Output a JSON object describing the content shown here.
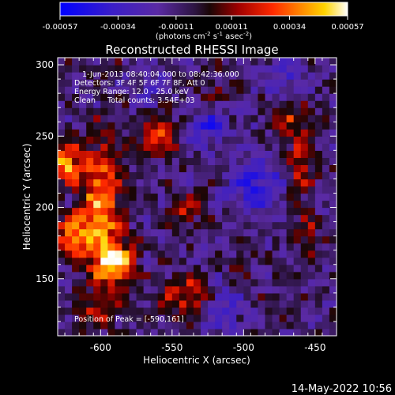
{
  "colorbar": {
    "ticks": [
      "-0.00057",
      "-0.00034",
      "-0.00011",
      "0.00011",
      "0.00034",
      "0.00057"
    ],
    "tick_values": [
      -0.00057,
      -0.00034,
      -0.00011,
      0.00011,
      0.00034,
      0.00057
    ],
    "unit_main": "(photons cm",
    "unit_sup1": "-2",
    "unit_mid1": " s",
    "unit_sup2": "-1",
    "unit_mid2": " asec",
    "unit_sup3": "-2",
    "unit_end": ")",
    "stops": [
      {
        "at": 0.0,
        "color": "#0000ff"
      },
      {
        "at": 0.18,
        "color": "#3a1ec8"
      },
      {
        "at": 0.34,
        "color": "#5a2aa4"
      },
      {
        "at": 0.47,
        "color": "#2c1440"
      },
      {
        "at": 0.52,
        "color": "#1a0606"
      },
      {
        "at": 0.62,
        "color": "#a00000"
      },
      {
        "at": 0.74,
        "color": "#ff2a00"
      },
      {
        "at": 0.84,
        "color": "#ff8a00"
      },
      {
        "at": 0.92,
        "color": "#ffd400"
      },
      {
        "at": 1.0,
        "color": "#ffffff"
      }
    ]
  },
  "plot": {
    "annotations": [
      "1-Jun-2013 08:40:04.000 to 08:42:36.000",
      "Detectors: 3F 4F 5F 6F 7F 8F, Att 0",
      "Energy Range: 12.0 - 25.0 keV",
      "Clean     Total counts: 3.54E+03"
    ],
    "peak_label": "Position of Peak = [-590,161]"
  },
  "footer": {
    "timestamp": "14-May-2022 10:56"
  },
  "chart_data": {
    "type": "heatmap",
    "title": "Reconstructed RHESSI Image",
    "xlabel": "Heliocentric X (arcsec)",
    "ylabel": "Heliocentric Y (arcsec)",
    "xlim": [
      -630,
      -435
    ],
    "ylim": [
      110,
      305
    ],
    "xticks": [
      -600,
      -550,
      -500,
      -450
    ],
    "yticks": [
      150,
      200,
      250,
      300
    ],
    "xtick_labels": [
      "-600",
      "-550",
      "-500",
      "-450"
    ],
    "ytick_labels": [
      "150",
      "200",
      "250",
      "300"
    ],
    "zrange": [
      -0.00057,
      0.00057
    ],
    "peak": [
      -590,
      161
    ],
    "blobs": [
      {
        "x": -600,
        "y": 200,
        "sx": 10,
        "sy": 32,
        "amp": 0.9
      },
      {
        "x": -590,
        "y": 162,
        "sx": 9,
        "sy": 9,
        "amp": 1.0
      },
      {
        "x": -624,
        "y": 232,
        "sx": 6,
        "sy": 10,
        "amp": 0.95
      },
      {
        "x": -620,
        "y": 180,
        "sx": 8,
        "sy": 10,
        "amp": 0.7
      },
      {
        "x": -560,
        "y": 250,
        "sx": 10,
        "sy": 10,
        "amp": 0.6
      },
      {
        "x": -540,
        "y": 200,
        "sx": 9,
        "sy": 8,
        "amp": 0.45
      },
      {
        "x": -540,
        "y": 138,
        "sx": 12,
        "sy": 10,
        "amp": 0.55
      },
      {
        "x": -460,
        "y": 230,
        "sx": 7,
        "sy": 18,
        "amp": 0.55
      },
      {
        "x": -470,
        "y": 265,
        "sx": 8,
        "sy": 8,
        "amp": 0.45
      },
      {
        "x": -455,
        "y": 178,
        "sx": 6,
        "sy": 10,
        "amp": 0.4
      },
      {
        "x": -600,
        "y": 130,
        "sx": 10,
        "sy": 8,
        "amp": 0.45
      },
      {
        "x": -505,
        "y": 160,
        "sx": 6,
        "sy": 6,
        "amp": 0.3
      },
      {
        "x": -520,
        "y": 285,
        "sx": 8,
        "sy": 6,
        "amp": 0.25
      },
      {
        "x": -490,
        "y": 215,
        "sx": 14,
        "sy": 14,
        "amp": -0.55
      },
      {
        "x": -525,
        "y": 255,
        "sx": 10,
        "sy": 10,
        "amp": -0.45
      },
      {
        "x": -515,
        "y": 130,
        "sx": 10,
        "sy": 12,
        "amp": -0.4
      },
      {
        "x": -470,
        "y": 290,
        "sx": 12,
        "sy": 8,
        "amp": -0.35
      },
      {
        "x": -565,
        "y": 285,
        "sx": 10,
        "sy": 8,
        "amp": -0.3
      }
    ]
  }
}
